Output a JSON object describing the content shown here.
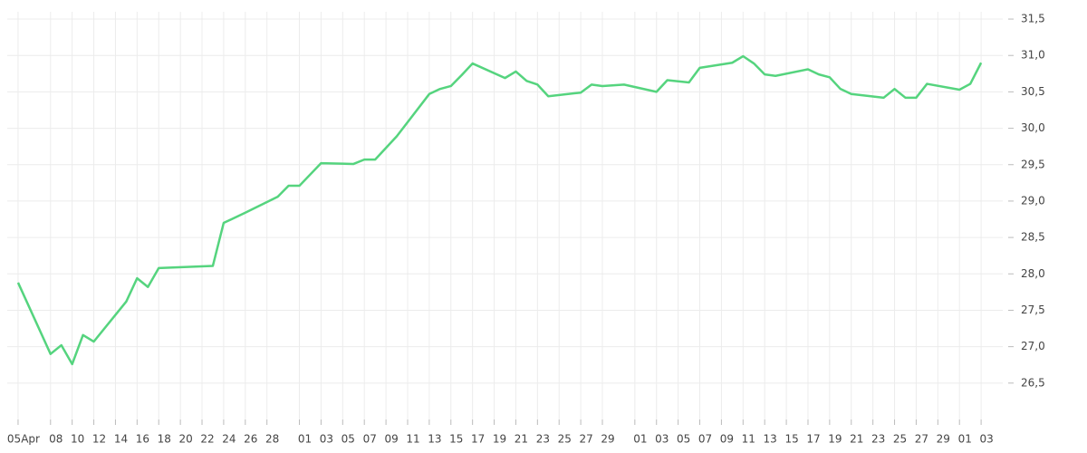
{
  "chart_data": {
    "type": "line",
    "x": [
      0,
      3,
      4,
      5,
      6,
      7,
      10,
      11,
      12,
      13,
      18,
      19,
      21,
      24,
      25,
      26,
      28,
      31,
      32,
      33,
      35,
      38,
      39,
      40,
      41,
      42,
      45,
      46,
      47,
      48,
      49,
      52,
      53,
      54,
      56,
      59,
      60,
      62,
      63,
      66,
      67,
      68,
      69,
      70,
      73,
      74,
      75,
      76,
      77,
      80,
      81,
      82,
      83,
      84,
      87,
      88,
      89
    ],
    "series": [
      {
        "color": "#55d47e",
        "values": [
          27.88,
          26.9,
          27.02,
          26.76,
          27.16,
          27.07,
          27.62,
          27.94,
          27.82,
          28.08,
          28.11,
          28.7,
          28.84,
          29.06,
          29.21,
          29.21,
          29.52,
          29.51,
          29.57,
          29.57,
          29.89,
          30.47,
          30.54,
          30.58,
          30.73,
          30.89,
          30.69,
          30.78,
          30.65,
          30.6,
          30.44,
          30.49,
          30.6,
          30.58,
          30.6,
          30.5,
          30.66,
          30.63,
          30.83,
          30.9,
          30.99,
          30.89,
          30.74,
          30.72,
          30.81,
          30.74,
          30.7,
          30.54,
          30.47,
          30.42,
          30.54,
          30.42,
          30.42,
          30.61,
          30.53,
          30.61,
          30.9
        ]
      }
    ],
    "xlim": [
      -1,
      91
    ],
    "xticks": [
      {
        "value": 0,
        "label": "05Apr"
      },
      {
        "value": 3,
        "label": "08"
      },
      {
        "value": 5,
        "label": "10"
      },
      {
        "value": 7,
        "label": "12"
      },
      {
        "value": 9,
        "label": "14"
      },
      {
        "value": 11,
        "label": "16"
      },
      {
        "value": 13,
        "label": "18"
      },
      {
        "value": 15,
        "label": "20"
      },
      {
        "value": 17,
        "label": "22"
      },
      {
        "value": 19,
        "label": "24"
      },
      {
        "value": 21,
        "label": "26"
      },
      {
        "value": 23,
        "label": "28"
      },
      {
        "value": 26,
        "label": "01"
      },
      {
        "value": 28,
        "label": "03"
      },
      {
        "value": 30,
        "label": "05"
      },
      {
        "value": 32,
        "label": "07"
      },
      {
        "value": 34,
        "label": "09"
      },
      {
        "value": 36,
        "label": "11"
      },
      {
        "value": 38,
        "label": "13"
      },
      {
        "value": 40,
        "label": "15"
      },
      {
        "value": 42,
        "label": "17"
      },
      {
        "value": 44,
        "label": "19"
      },
      {
        "value": 46,
        "label": "21"
      },
      {
        "value": 48,
        "label": "23"
      },
      {
        "value": 50,
        "label": "25"
      },
      {
        "value": 52,
        "label": "27"
      },
      {
        "value": 54,
        "label": "29"
      },
      {
        "value": 57,
        "label": "01"
      },
      {
        "value": 59,
        "label": "03"
      },
      {
        "value": 61,
        "label": "05"
      },
      {
        "value": 63,
        "label": "07"
      },
      {
        "value": 65,
        "label": "09"
      },
      {
        "value": 67,
        "label": "11"
      },
      {
        "value": 69,
        "label": "13"
      },
      {
        "value": 71,
        "label": "15"
      },
      {
        "value": 73,
        "label": "17"
      },
      {
        "value": 75,
        "label": "19"
      },
      {
        "value": 77,
        "label": "21"
      },
      {
        "value": 79,
        "label": "23"
      },
      {
        "value": 81,
        "label": "25"
      },
      {
        "value": 83,
        "label": "27"
      },
      {
        "value": 85,
        "label": "29"
      },
      {
        "value": 87,
        "label": "01"
      },
      {
        "value": 89,
        "label": "03"
      }
    ],
    "ylim": [
      26.0,
      31.6
    ],
    "yticks": [
      {
        "value": 26.5,
        "label": "26,5"
      },
      {
        "value": 27,
        "label": "27,0"
      },
      {
        "value": 27.5,
        "label": "27,5"
      },
      {
        "value": 28,
        "label": "28,0"
      },
      {
        "value": 28.5,
        "label": "28,5"
      },
      {
        "value": 29,
        "label": "29,0"
      },
      {
        "value": 29.5,
        "label": "29,5"
      },
      {
        "value": 30,
        "label": "30,0"
      },
      {
        "value": 30.5,
        "label": "30,5"
      },
      {
        "value": 31,
        "label": "31,0"
      },
      {
        "value": 31.5,
        "label": "31,5"
      }
    ],
    "grid": true
  }
}
